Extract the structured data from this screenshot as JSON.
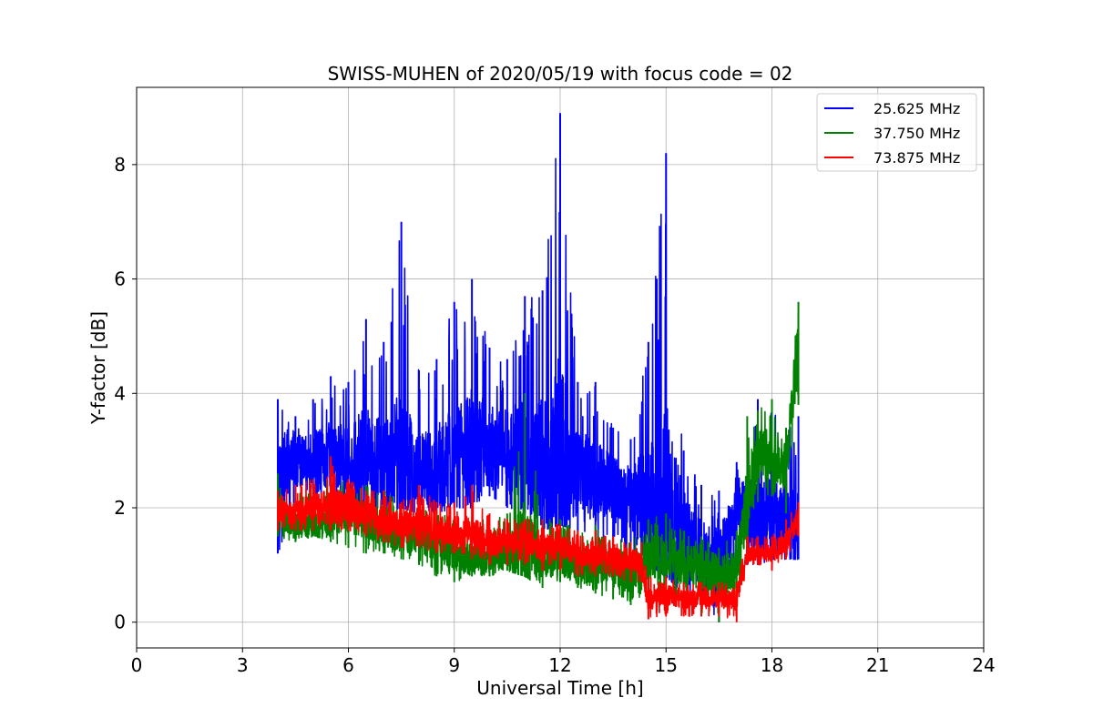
{
  "chart_data": {
    "type": "line",
    "title": "SWISS-MUHEN of 2020/05/19 with focus code = 02",
    "xlabel": "Universal Time [h]",
    "ylabel": "Y-factor [dB]",
    "xlim": [
      0,
      24
    ],
    "ylim": [
      -0.45,
      9.35
    ],
    "xticks": [
      0,
      3,
      6,
      9,
      12,
      15,
      18,
      21,
      24
    ],
    "yticks": [
      0,
      2,
      4,
      6,
      8
    ],
    "grid": true,
    "legend_position": "top-right",
    "series": [
      {
        "name": "25.625 MHz",
        "color": "#0000ff",
        "x": [
          4.0,
          4.5,
          5.0,
          5.5,
          6.0,
          6.5,
          7.0,
          7.5,
          8.0,
          8.5,
          9.0,
          9.5,
          10.0,
          10.5,
          11.0,
          11.5,
          12.0,
          12.5,
          13.0,
          13.5,
          14.0,
          14.5,
          15.0,
          15.5,
          16.0,
          16.5,
          17.0,
          17.3,
          17.6,
          18.0,
          18.4,
          18.75
        ],
        "center": [
          2.6,
          2.8,
          2.8,
          2.9,
          2.8,
          2.8,
          2.7,
          2.8,
          2.6,
          2.7,
          2.8,
          3.0,
          3.1,
          3.0,
          2.9,
          2.8,
          2.7,
          2.6,
          2.5,
          2.3,
          2.2,
          2.0,
          1.9,
          1.6,
          1.2,
          1.0,
          2.0,
          1.7,
          1.7,
          1.8,
          1.7,
          1.6
        ],
        "low": [
          1.2,
          1.9,
          2.0,
          2.1,
          1.8,
          1.8,
          1.9,
          2.0,
          1.9,
          1.9,
          2.0,
          2.0,
          2.2,
          2.0,
          1.9,
          1.6,
          1.7,
          1.6,
          1.5,
          1.3,
          1.2,
          1.0,
          0.8,
          0.5,
          0.3,
          0.0,
          1.1,
          1.0,
          1.0,
          1.1,
          1.1,
          1.1
        ],
        "high": [
          3.9,
          3.6,
          3.9,
          4.3,
          4.2,
          5.3,
          4.9,
          7.0,
          4.4,
          4.6,
          5.6,
          6.0,
          4.8,
          4.6,
          5.7,
          5.8,
          8.9,
          4.2,
          4.2,
          3.4,
          3.2,
          4.9,
          8.2,
          3.0,
          2.4,
          2.3,
          2.8,
          2.4,
          3.9,
          3.8,
          3.4,
          3.6
        ]
      },
      {
        "name": "37.750 MHz",
        "color": "#008000",
        "x": [
          4.0,
          4.5,
          5.0,
          5.5,
          6.0,
          6.5,
          7.0,
          7.5,
          8.0,
          8.5,
          9.0,
          9.5,
          10.0,
          10.5,
          11.0,
          11.5,
          12.0,
          12.5,
          13.0,
          13.5,
          14.0,
          14.5,
          15.0,
          15.5,
          16.0,
          16.5,
          17.0,
          17.3,
          17.6,
          18.0,
          18.4,
          18.75
        ],
        "center": [
          2.0,
          1.7,
          1.7,
          1.8,
          1.9,
          1.8,
          1.6,
          1.5,
          1.5,
          1.4,
          1.2,
          1.1,
          1.1,
          1.2,
          1.3,
          1.1,
          1.1,
          1.0,
          1.0,
          0.9,
          0.8,
          1.1,
          1.2,
          1.0,
          0.9,
          0.8,
          0.9,
          2.2,
          2.9,
          3.0,
          2.7,
          4.8
        ],
        "low": [
          1.5,
          1.4,
          1.5,
          1.4,
          1.3,
          1.2,
          1.2,
          1.1,
          1.0,
          0.8,
          0.7,
          0.8,
          0.8,
          0.9,
          0.8,
          0.6,
          0.7,
          0.6,
          0.5,
          0.4,
          0.3,
          0.5,
          0.4,
          0.2,
          0.1,
          0.0,
          0.3,
          1.4,
          2.1,
          2.2,
          1.9,
          3.8
        ],
        "high": [
          2.6,
          2.3,
          2.4,
          2.5,
          2.5,
          2.4,
          2.3,
          2.1,
          2.1,
          2.0,
          1.8,
          1.8,
          1.9,
          1.9,
          4.0,
          1.8,
          1.8,
          1.6,
          1.7,
          1.5,
          1.4,
          1.8,
          1.9,
          1.6,
          1.5,
          1.3,
          1.6,
          3.6,
          3.7,
          3.9,
          3.4,
          5.6
        ]
      },
      {
        "name": "73.875 MHz",
        "color": "#ff0000",
        "x": [
          4.0,
          4.5,
          5.0,
          5.5,
          6.0,
          6.5,
          7.0,
          7.5,
          8.0,
          8.5,
          9.0,
          9.5,
          10.0,
          10.5,
          11.0,
          11.5,
          12.0,
          12.5,
          13.0,
          13.5,
          14.0,
          14.3,
          14.5,
          15.0,
          15.5,
          16.0,
          16.5,
          17.0,
          17.3,
          17.6,
          18.0,
          18.4,
          18.75
        ],
        "center": [
          1.9,
          1.9,
          2.0,
          2.0,
          2.0,
          1.9,
          1.8,
          1.7,
          1.7,
          1.6,
          1.6,
          1.5,
          1.4,
          1.4,
          1.4,
          1.3,
          1.3,
          1.2,
          1.2,
          1.1,
          1.1,
          1.0,
          0.4,
          0.5,
          0.4,
          0.4,
          0.4,
          0.4,
          1.2,
          1.2,
          1.2,
          1.4,
          1.8
        ],
        "low": [
          1.6,
          1.6,
          1.6,
          1.6,
          1.6,
          1.5,
          1.4,
          1.3,
          1.3,
          1.2,
          1.2,
          1.1,
          1.0,
          1.0,
          1.0,
          0.9,
          0.9,
          0.8,
          0.8,
          0.8,
          0.7,
          0.7,
          0.05,
          0.1,
          0.1,
          0.1,
          0.1,
          0.0,
          1.0,
          1.0,
          0.9,
          1.1,
          1.5
        ],
        "high": [
          2.3,
          2.4,
          2.5,
          2.9,
          2.5,
          2.3,
          2.3,
          2.1,
          2.4,
          2.1,
          2.1,
          2.4,
          1.9,
          1.8,
          1.8,
          1.8,
          1.7,
          1.6,
          1.6,
          1.5,
          1.4,
          1.4,
          0.8,
          0.8,
          0.7,
          0.7,
          0.7,
          0.7,
          1.5,
          1.5,
          1.5,
          1.8,
          2.1
        ]
      }
    ]
  }
}
